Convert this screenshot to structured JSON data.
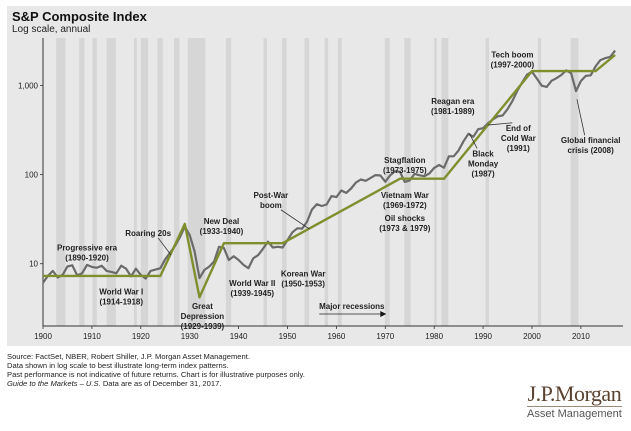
{
  "chart_data": {
    "type": "line",
    "title": "S&P Composite Index",
    "subtitle": "Log scale, annual",
    "xlabel": "",
    "ylabel": "",
    "y_scale": "log",
    "xlim": [
      1900,
      2018
    ],
    "ylim": [
      2,
      3000
    ],
    "grid": false,
    "x_ticks": [
      1900,
      1910,
      1920,
      1930,
      1940,
      1950,
      1960,
      1970,
      1980,
      1990,
      2000,
      2010
    ],
    "x_tick_labels": [
      "1900",
      "1910",
      "1920",
      "1930",
      "1940",
      "1950",
      "1960",
      "1970",
      "1980",
      "1990",
      "2000",
      "2010"
    ],
    "y_ticks": [
      10,
      100,
      1000
    ],
    "y_tick_labels": [
      "10",
      "100",
      "1,000"
    ],
    "colors": {
      "index_line": "#6b6b6b",
      "trend_line": "#7f8f2e",
      "recession_band": "#d6d6d6",
      "background": "#e8e8e8"
    },
    "series": [
      {
        "name": "S&P Composite Index",
        "x": [
          1900,
          1901,
          1902,
          1903,
          1904,
          1905,
          1906,
          1907,
          1908,
          1909,
          1910,
          1911,
          1912,
          1913,
          1914,
          1915,
          1916,
          1917,
          1918,
          1919,
          1920,
          1921,
          1922,
          1923,
          1924,
          1925,
          1926,
          1927,
          1928,
          1929,
          1930,
          1931,
          1932,
          1933,
          1934,
          1935,
          1936,
          1937,
          1938,
          1939,
          1940,
          1941,
          1942,
          1943,
          1944,
          1945,
          1946,
          1947,
          1948,
          1949,
          1950,
          1951,
          1952,
          1953,
          1954,
          1955,
          1956,
          1957,
          1958,
          1959,
          1960,
          1961,
          1962,
          1963,
          1964,
          1965,
          1966,
          1967,
          1968,
          1969,
          1970,
          1971,
          1972,
          1973,
          1974,
          1975,
          1976,
          1977,
          1978,
          1979,
          1980,
          1981,
          1982,
          1983,
          1984,
          1985,
          1986,
          1987,
          1988,
          1989,
          1990,
          1991,
          1992,
          1993,
          1994,
          1995,
          1996,
          1997,
          1998,
          1999,
          2000,
          2001,
          2002,
          2003,
          2004,
          2005,
          2006,
          2007,
          2008,
          2009,
          2010,
          2011,
          2012,
          2013,
          2014,
          2015,
          2016,
          2017
        ],
        "values": [
          6.1,
          7.3,
          8.3,
          7.0,
          7.5,
          9.3,
          9.6,
          7.4,
          7.8,
          9.7,
          9.2,
          9.0,
          9.5,
          8.3,
          8.1,
          7.8,
          9.5,
          8.8,
          7.2,
          8.8,
          7.5,
          6.8,
          8.3,
          8.6,
          8.9,
          11.2,
          13.3,
          15.8,
          19.8,
          26.0,
          21.0,
          13.7,
          6.9,
          8.5,
          9.3,
          10.6,
          15.5,
          15.0,
          11.0,
          12.1,
          11.0,
          9.7,
          8.9,
          11.5,
          12.5,
          14.7,
          17.7,
          15.2,
          15.5,
          15.2,
          18.4,
          22.5,
          25.0,
          24.8,
          29.7,
          40.5,
          46.6,
          44.4,
          46.2,
          57.4,
          56.0,
          66.3,
          62.4,
          69.9,
          81.4,
          88.2,
          85.3,
          91.9,
          98.7,
          97.8,
          83.2,
          98.3,
          109.2,
          107.4,
          82.9,
          86.1,
          102.0,
          98.2,
          96.0,
          103.0,
          118.8,
          128.1,
          119.7,
          160.4,
          160.5,
          186.8,
          236.3,
          286.8,
          265.9,
          323.1,
          331.9,
          376.2,
          415.7,
          451.4,
          460.3,
          541.7,
          670.5,
          873.4,
          1085.5,
          1327.3,
          1427.2,
          1194.2,
          993.9,
          965.2,
          1130.7,
          1207.2,
          1310.5,
          1477.2,
          1378.8,
          865.6,
          1123.6,
          1282.6,
          1300.6,
          1642.0,
          1930.7,
          2028.2,
          2094.7,
          2466.0
        ]
      },
      {
        "name": "Long-term trend",
        "x": [
          1900,
          1924,
          1929,
          1932,
          1937,
          1949,
          1973,
          1982,
          2000,
          2013,
          2017
        ],
        "values": [
          7.3,
          7.3,
          28,
          4.2,
          17,
          17,
          90,
          90,
          1450,
          1450,
          2200
        ]
      }
    ],
    "recessions": [
      [
        1902.7,
        1904.6
      ],
      [
        1907.4,
        1908.5
      ],
      [
        1910.1,
        1911.0
      ],
      [
        1913.0,
        1914.9
      ],
      [
        1918.6,
        1919.2
      ],
      [
        1920.0,
        1921.5
      ],
      [
        1923.4,
        1924.5
      ],
      [
        1926.8,
        1927.9
      ],
      [
        1929.6,
        1933.2
      ],
      [
        1937.4,
        1938.5
      ],
      [
        1945.1,
        1945.8
      ],
      [
        1948.9,
        1949.8
      ],
      [
        1953.5,
        1954.4
      ],
      [
        1957.6,
        1958.3
      ],
      [
        1960.3,
        1961.1
      ],
      [
        1969.9,
        1970.9
      ],
      [
        1973.9,
        1975.2
      ],
      [
        1980.0,
        1980.5
      ],
      [
        1981.5,
        1982.9
      ],
      [
        1990.5,
        1991.2
      ],
      [
        2001.2,
        2001.9
      ],
      [
        2007.9,
        2009.5
      ]
    ],
    "annotations": [
      {
        "id": "progressive-era",
        "lines": [
          "Progressive era",
          "(1890-1920)"
        ],
        "x": 1909,
        "y": 14,
        "arrow": false
      },
      {
        "id": "world-war-i",
        "lines": [
          "World War I",
          "(1914-1918)"
        ],
        "x": 1916,
        "y": 4.5,
        "arrow": false
      },
      {
        "id": "roaring-20s",
        "lines": [
          "Roaring 20s"
        ],
        "x": 1921.5,
        "y": 20.5,
        "arrow_to": [
          1926.2,
          12.5
        ]
      },
      {
        "id": "great-depression",
        "lines": [
          "Great",
          "Depression",
          "(1929-1939)"
        ],
        "x": 1932.6,
        "y": 3.1,
        "arrow": false
      },
      {
        "id": "new-deal",
        "lines": [
          "New Deal",
          "(1933-1940)"
        ],
        "x": 1936.5,
        "y": 28,
        "arrow": false
      },
      {
        "id": "world-war-ii",
        "lines": [
          "World War II",
          "(1939-1945)"
        ],
        "x": 1942.8,
        "y": 5.6,
        "arrow": false
      },
      {
        "id": "post-war-boom",
        "lines": [
          "Post-War",
          "boom"
        ],
        "x": 1946.6,
        "y": 55,
        "arrow_to": [
          1954.5,
          24.5
        ]
      },
      {
        "id": "korean-war",
        "lines": [
          "Korean War",
          "(1950-1953)"
        ],
        "x": 1953.2,
        "y": 7.2,
        "arrow": false
      },
      {
        "id": "stagflation",
        "lines": [
          "Stagflation",
          "(1973-1975)"
        ],
        "x": 1974,
        "y": 135,
        "arrow": false
      },
      {
        "id": "vietnam-war",
        "lines": [
          "Vietnam War",
          "(1969-1972)"
        ],
        "x": 1974,
        "y": 55,
        "arrow": false
      },
      {
        "id": "oil-shocks",
        "lines": [
          "Oil shocks",
          "(1973 & 1979)"
        ],
        "x": 1974,
        "y": 30,
        "arrow": false
      },
      {
        "id": "reagan-era",
        "lines": [
          "Reagan era",
          "(1981-1989)"
        ],
        "x": 1983.8,
        "y": 620,
        "arrow": false
      },
      {
        "id": "black-monday",
        "lines": [
          "Black",
          "Monday",
          "(1987)"
        ],
        "x": 1990,
        "y": 160,
        "arrow_to": [
          1987.2,
          290
        ]
      },
      {
        "id": "end-of-cold-war",
        "lines": [
          "End of",
          "Cold War",
          "(1991)"
        ],
        "x": 1997.2,
        "y": 310,
        "arrow_to": [
          1990.9,
          360
        ]
      },
      {
        "id": "tech-boom",
        "lines": [
          "Tech boom",
          "(1997-2000)"
        ],
        "x": 1996,
        "y": 2050,
        "arrow": false
      },
      {
        "id": "global-financial-crisis",
        "lines": [
          "Global financial",
          "crisis (2008)"
        ],
        "x": 2012,
        "y": 225,
        "arrow_to": [
          2009.2,
          700
        ]
      }
    ],
    "legend": {
      "label": "Major recessions",
      "placement": "bottom-center"
    }
  },
  "footnotes": {
    "line1": "Source: FactSet, NBER, Robert Shiller, J.P. Morgan Asset Management.",
    "line2": "Data shown in log scale to best illustrate long-term index patterns.",
    "line3": "Past performance is not indicative of future returns. Chart is for illustrative purposes only.",
    "line4_italic": "Guide to the Markets – U.S.",
    "line4_rest": " Data are as of December 31, 2017."
  },
  "branding": {
    "logo_main": "J.P.Morgan",
    "logo_sub": "Asset Management"
  }
}
